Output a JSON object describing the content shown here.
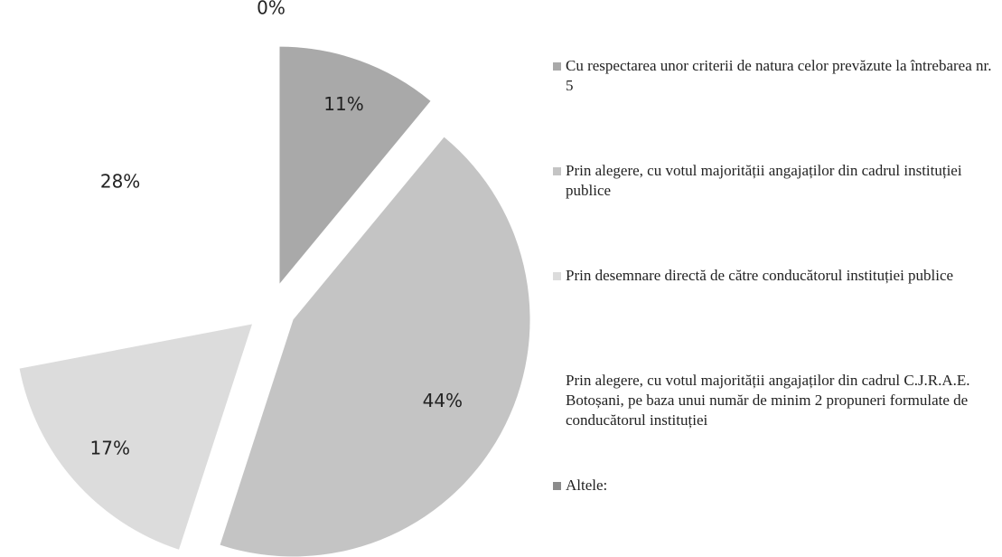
{
  "chart_data": {
    "type": "pie",
    "categories": [
      "Cu respectarea unor criterii de natura celor prevăzute la întrebarea nr. 5",
      "Prin alegere, cu votul majorității angajaților din cadrul instituției publice",
      "Prin desemnare directă de către conducătorul instituției publice",
      "Prin alegere, cu votul majorității angajaților din cadrul C.J.R.A.E. Botoșani, pe baza unui număr de minim 2 propuneri formulate de conducătorul instituției",
      "Altele:"
    ],
    "values": [
      11,
      44,
      17,
      28,
      0
    ],
    "value_labels": [
      "11%",
      "44%",
      "17%",
      "28%",
      "0%"
    ],
    "colors": [
      "#a9a9a9",
      "#c4c4c4",
      "#dcdcdc",
      "#ffffff",
      "#8c8c8c"
    ],
    "legend": "right"
  }
}
